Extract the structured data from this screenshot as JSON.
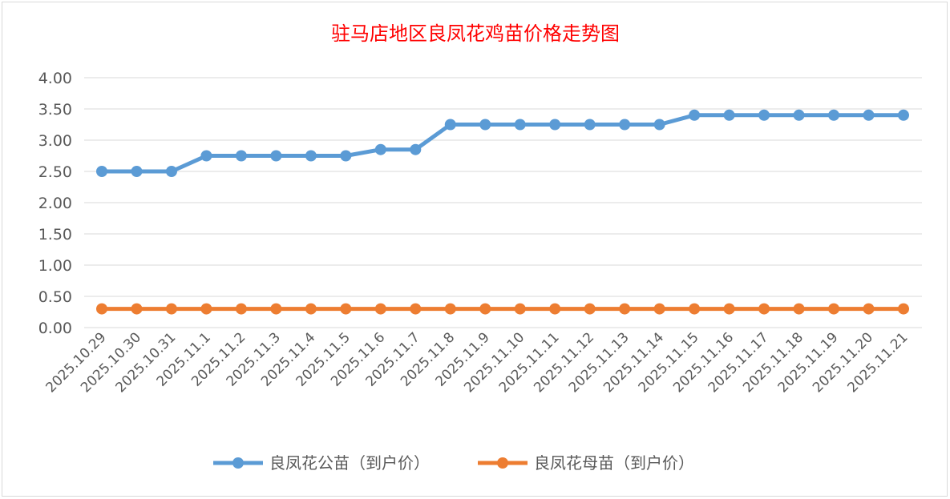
{
  "chart_data": {
    "type": "line",
    "title": "驻马店地区良凤花鸡苗价格走势图",
    "xlabel": "",
    "ylabel": "",
    "ylim": [
      0,
      4
    ],
    "yticks": [
      "0.00",
      "0.50",
      "1.00",
      "1.50",
      "2.00",
      "2.50",
      "3.00",
      "3.50",
      "4.00"
    ],
    "grid": true,
    "legend_position": "bottom",
    "categories": [
      "2025.10.29",
      "2025.10.30",
      "2025.10.31",
      "2025.11.1",
      "2025.11.2",
      "2025.11.3",
      "2025.11.4",
      "2025.11.5",
      "2025.11.6",
      "2025.11.7",
      "2025.11.8",
      "2025.11.9",
      "2025.11.10",
      "2025.11.11",
      "2025.11.12",
      "2025.11.13",
      "2025.11.14",
      "2025.11.15",
      "2025.11.16",
      "2025.11.17",
      "2025.11.18",
      "2025.11.19",
      "2025.11.20",
      "2025.11.21"
    ],
    "series": [
      {
        "name": "良凤花公苗（到户价）",
        "color": "#5b9bd5",
        "values": [
          2.5,
          2.5,
          2.5,
          2.75,
          2.75,
          2.75,
          2.75,
          2.75,
          2.85,
          2.85,
          3.25,
          3.25,
          3.25,
          3.25,
          3.25,
          3.25,
          3.25,
          3.4,
          3.4,
          3.4,
          3.4,
          3.4,
          3.4,
          3.4
        ]
      },
      {
        "name": "良凤花母苗（到户价）",
        "color": "#ed7d31",
        "values": [
          0.3,
          0.3,
          0.3,
          0.3,
          0.3,
          0.3,
          0.3,
          0.3,
          0.3,
          0.3,
          0.3,
          0.3,
          0.3,
          0.3,
          0.3,
          0.3,
          0.3,
          0.3,
          0.3,
          0.3,
          0.3,
          0.3,
          0.3,
          0.3
        ]
      }
    ]
  }
}
